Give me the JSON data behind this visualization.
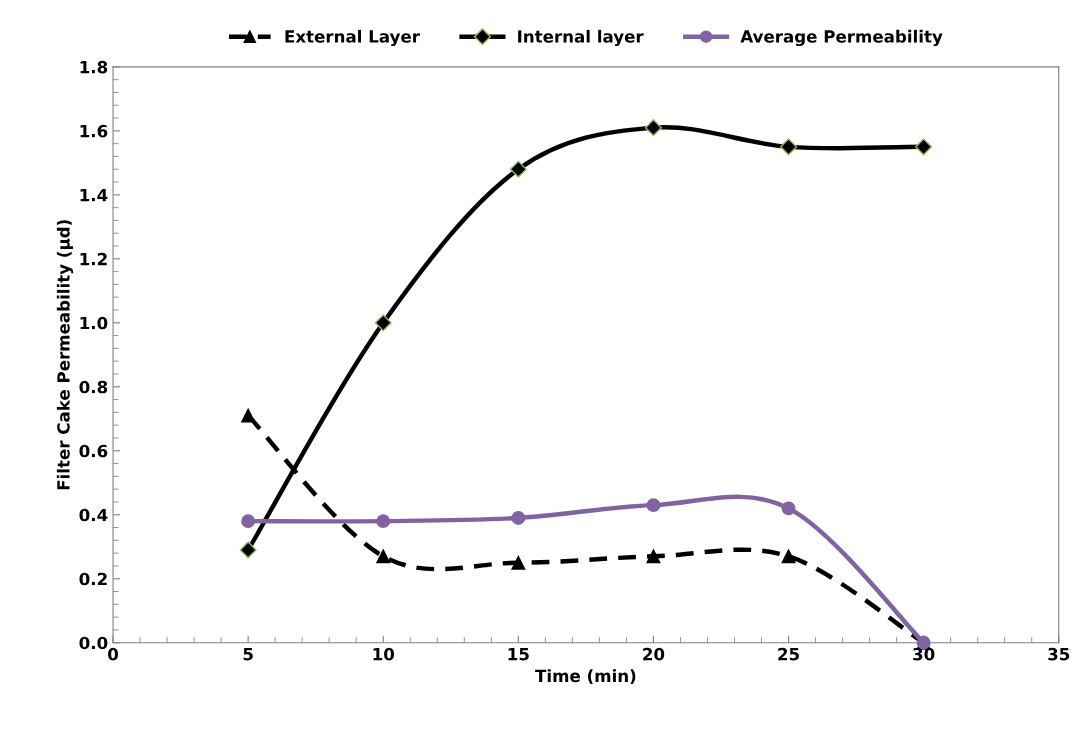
{
  "chart_data": {
    "type": "line",
    "xlabel": "Time (min)",
    "ylabel": "Filter Cake Permeability (µd)",
    "x": [
      5,
      10,
      15,
      20,
      25,
      30
    ],
    "series": [
      {
        "name": "External Layer",
        "color": "#000000",
        "values": [
          0.71,
          0.27,
          0.25,
          0.27,
          0.27,
          0.0
        ],
        "marker": "triangle",
        "line_style": "dashed"
      },
      {
        "name": "Internal layer",
        "color": "#000000",
        "values": [
          0.29,
          1.0,
          1.48,
          1.61,
          1.55,
          1.55
        ],
        "marker": "diamond",
        "line_style": "solid"
      },
      {
        "name": "Average Permeability",
        "color": "#8064a2",
        "values": [
          0.38,
          0.38,
          0.39,
          0.43,
          0.42,
          0.0
        ],
        "marker": "circle",
        "line_style": "solid"
      }
    ],
    "xlim": [
      0,
      35
    ],
    "xticks": [
      0,
      5,
      10,
      15,
      20,
      25,
      30,
      35
    ],
    "ylim": [
      0,
      1.8
    ],
    "yticks": [
      {
        "value": 0,
        "label": "0.0"
      },
      0.2,
      0.4,
      0.6,
      0.8,
      {
        "value": 1.0,
        "label": "1.0"
      },
      1.2,
      1.4,
      1.6,
      1.8
    ],
    "grid": false,
    "legend": "top"
  }
}
